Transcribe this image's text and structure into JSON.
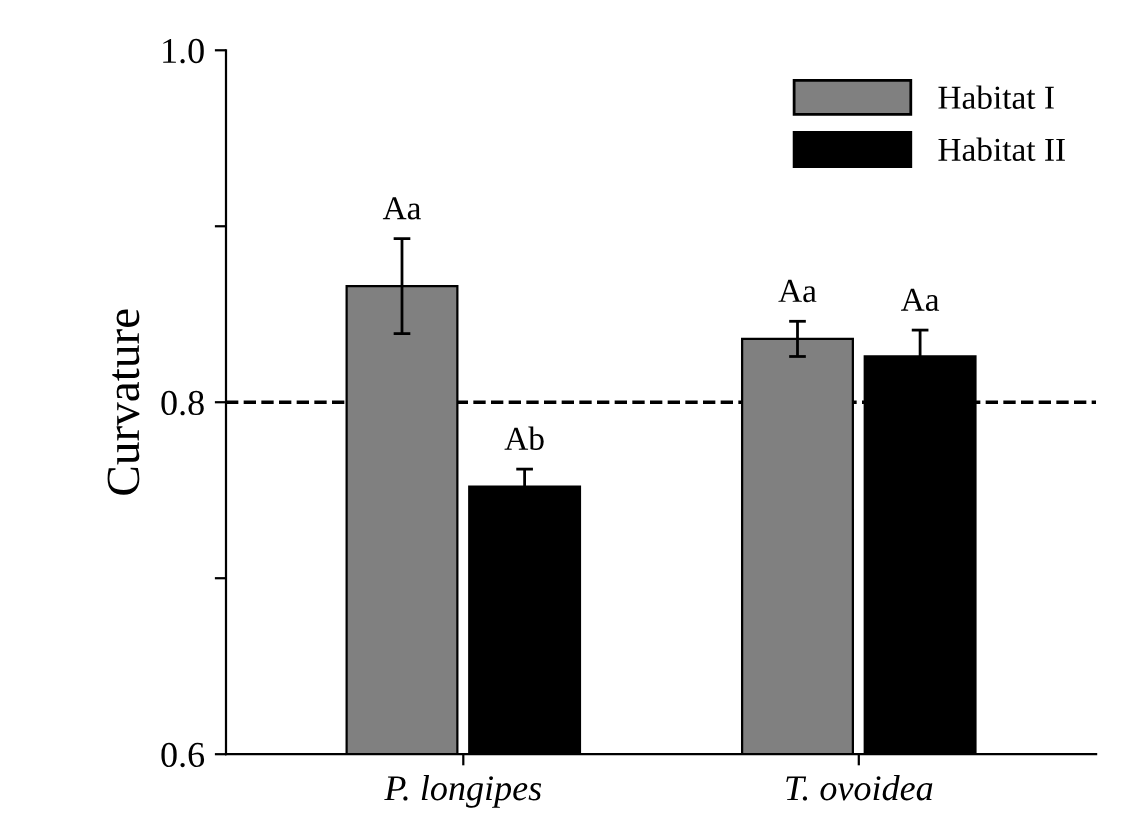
{
  "chart_data": {
    "type": "bar",
    "ylabel": "Curvature",
    "categories": [
      "P. longipes",
      "T. ovoidea"
    ],
    "series": [
      {
        "name": "Habitat I",
        "color": "#808080",
        "values": [
          0.866,
          0.836
        ],
        "errors": [
          0.027,
          0.01
        ]
      },
      {
        "name": "Habitat II",
        "color": "#000000",
        "values": [
          0.752,
          0.826
        ],
        "errors": [
          0.01,
          0.015
        ]
      }
    ],
    "ylim": [
      0.6,
      1.0
    ],
    "yticks": [
      0.6,
      {
        "value": 0.7,
        "label": null
      },
      0.8,
      {
        "value": 0.9,
        "label": null
      },
      {
        "value": 1.0,
        "label": "1.0"
      }
    ],
    "ref_lines": [
      {
        "axis": "y",
        "value": 0.8,
        "line_style": "dashed",
        "color": "#000000"
      }
    ],
    "annotations": [
      "Aa",
      "Ab",
      "Aa",
      "Aa"
    ],
    "legend": "top right",
    "grid": false
  }
}
